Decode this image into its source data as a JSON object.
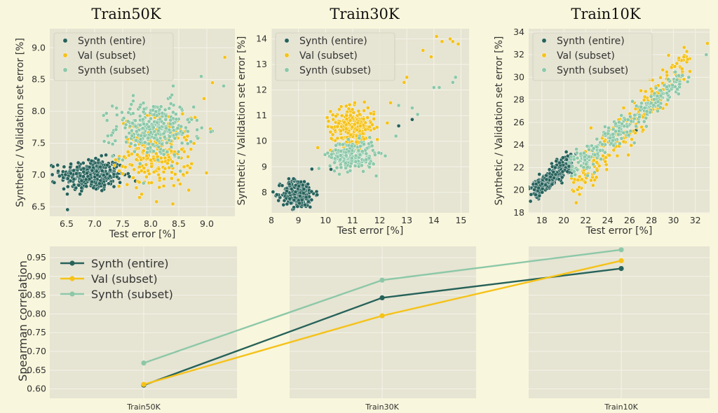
{
  "colors": {
    "synth_entire": "#26625a",
    "val_subset": "#f5c218",
    "synth_subset": "#8cc8a8",
    "panel_bg": "#e6e4d2",
    "figure_bg": "#f8f6dc",
    "grid": "#f4f3ea"
  },
  "chart_data": [
    {
      "type": "scatter",
      "title": "Train50K",
      "xlabel": "Test error [%]",
      "ylabel": "Synthetic / Validation set error [%]",
      "xlim": [
        6.2,
        9.5
      ],
      "ylim": [
        6.35,
        9.3
      ],
      "xticks": [
        "6.5",
        "7.0",
        "7.5",
        "8.0",
        "8.5",
        "9.0"
      ],
      "yticks": [
        "6.5",
        "7.0",
        "7.5",
        "8.0",
        "8.5",
        "9.0"
      ],
      "legend": "top-left",
      "series": [
        {
          "name": "Synth (entire)",
          "clusters": [
            {
              "x": 6.95,
              "y": 7.0,
              "sx": 0.28,
              "sy": 0.13,
              "n": 320
            }
          ],
          "outliers": [
            [
              6.28,
              6.88
            ],
            [
              6.45,
              6.78
            ]
          ]
        },
        {
          "name": "Val (subset)",
          "clusters": [
            {
              "x": 8.1,
              "y": 7.35,
              "sx": 0.32,
              "sy": 0.28,
              "n": 270
            }
          ],
          "outliers": [
            [
              9.32,
              8.85
            ],
            [
              9.1,
              8.45
            ],
            [
              8.95,
              8.2
            ]
          ]
        },
        {
          "name": "Synth (subset)",
          "clusters": [
            {
              "x": 8.05,
              "y": 7.72,
              "sx": 0.35,
              "sy": 0.22,
              "n": 300
            }
          ],
          "outliers": [
            [
              9.3,
              8.4
            ],
            [
              8.9,
              8.55
            ],
            [
              8.4,
              8.4
            ]
          ]
        }
      ]
    },
    {
      "type": "scatter",
      "title": "Train30K",
      "xlabel": "Test error [%]",
      "ylabel": "Synthetic / Validation set error [%]",
      "xlim": [
        8.0,
        15.3
      ],
      "ylim": [
        7.2,
        14.4
      ],
      "xticks": [
        "8",
        "9",
        "10",
        "11",
        "12",
        "13",
        "14",
        "15"
      ],
      "yticks": [
        "8",
        "9",
        "10",
        "11",
        "12",
        "13",
        "14"
      ],
      "legend": "top-left",
      "series": [
        {
          "name": "Synth (entire)",
          "clusters": [
            {
              "x": 9.0,
              "y": 7.95,
              "sx": 0.3,
              "sy": 0.28,
              "n": 260
            }
          ],
          "outliers": [
            [
              12.7,
              10.6
            ],
            [
              13.2,
              10.85
            ],
            [
              11.2,
              9.5
            ],
            [
              10.2,
              8.9
            ]
          ]
        },
        {
          "name": "Val (subset)",
          "clusters": [
            {
              "x": 11.0,
              "y": 10.55,
              "sx": 0.4,
              "sy": 0.38,
              "n": 250
            }
          ],
          "outliers": [
            [
              14.1,
              14.1
            ],
            [
              14.3,
              13.9
            ],
            [
              14.6,
              14.0
            ],
            [
              14.7,
              13.9
            ],
            [
              14.9,
              13.8
            ],
            [
              13.9,
              13.3
            ],
            [
              13.6,
              13.55
            ],
            [
              13.0,
              12.5
            ],
            [
              12.9,
              12.3
            ],
            [
              12.4,
              11.5
            ]
          ]
        },
        {
          "name": "Synth (subset)",
          "clusters": [
            {
              "x": 11.0,
              "y": 9.45,
              "sx": 0.42,
              "sy": 0.28,
              "n": 230
            }
          ],
          "outliers": [
            [
              14.0,
              12.1
            ],
            [
              14.2,
              12.1
            ],
            [
              14.8,
              12.5
            ],
            [
              14.7,
              12.3
            ],
            [
              13.2,
              11.3
            ],
            [
              13.4,
              11.05
            ],
            [
              12.7,
              11.4
            ],
            [
              12.6,
              10.2
            ]
          ]
        }
      ]
    },
    {
      "type": "scatter",
      "title": "Train10K",
      "xlabel": "Test error [%]",
      "ylabel": "Synthetic / Validation set error [%]",
      "xlim": [
        16.8,
        33.3
      ],
      "ylim": [
        18.0,
        34.3
      ],
      "xticks": [
        "18",
        "20",
        "22",
        "24",
        "26",
        "28",
        "30",
        "32"
      ],
      "yticks": [
        "18",
        "20",
        "22",
        "24",
        "26",
        "28",
        "30",
        "32",
        "34"
      ],
      "legend": "top-left",
      "series": [
        {
          "name": "Synth (entire)",
          "line": {
            "x0": 17.3,
            "y0": 19.8,
            "slope": 0.85,
            "len": 3.4,
            "noise": 0.4,
            "n": 280
          },
          "outliers": [
            [
              26.6,
              25.3
            ],
            [
              25.6,
              24.7
            ]
          ]
        },
        {
          "name": "Val (subset)",
          "line": {
            "x0": 20.8,
            "y0": 20.4,
            "slope": 1.07,
            "len": 10.4,
            "noise": 0.9,
            "n": 230
          },
          "outliers": [
            [
              33.1,
              33.0
            ],
            [
              31.3,
              31.6
            ],
            [
              30.5,
              31.7
            ],
            [
              20.9,
              19.9
            ]
          ]
        },
        {
          "name": "Synth (subset)",
          "line": {
            "x0": 20.6,
            "y0": 21.8,
            "slope": 0.78,
            "len": 10.2,
            "noise": 0.55,
            "n": 270
          },
          "outliers": [
            [
              33.0,
              32.0
            ],
            [
              31.4,
              30.0
            ],
            [
              31.3,
              29.6
            ]
          ]
        }
      ]
    },
    {
      "type": "line",
      "title": "",
      "xlabel": "",
      "ylabel": "Spearman correlation",
      "categories": [
        "Train50K",
        "Train30K",
        "Train10K"
      ],
      "ylim": [
        0.575,
        0.98
      ],
      "yticks": [
        "0.60",
        "0.65",
        "0.70",
        "0.75",
        "0.80",
        "0.85",
        "0.90",
        "0.95"
      ],
      "legend": "top-left",
      "series": [
        {
          "name": "Synth (entire)",
          "values": [
            0.61,
            0.843,
            0.921
          ]
        },
        {
          "name": "Val (subset)",
          "values": [
            0.612,
            0.795,
            0.942
          ]
        },
        {
          "name": "Synth (subset)",
          "values": [
            0.669,
            0.89,
            0.971
          ]
        }
      ]
    }
  ]
}
